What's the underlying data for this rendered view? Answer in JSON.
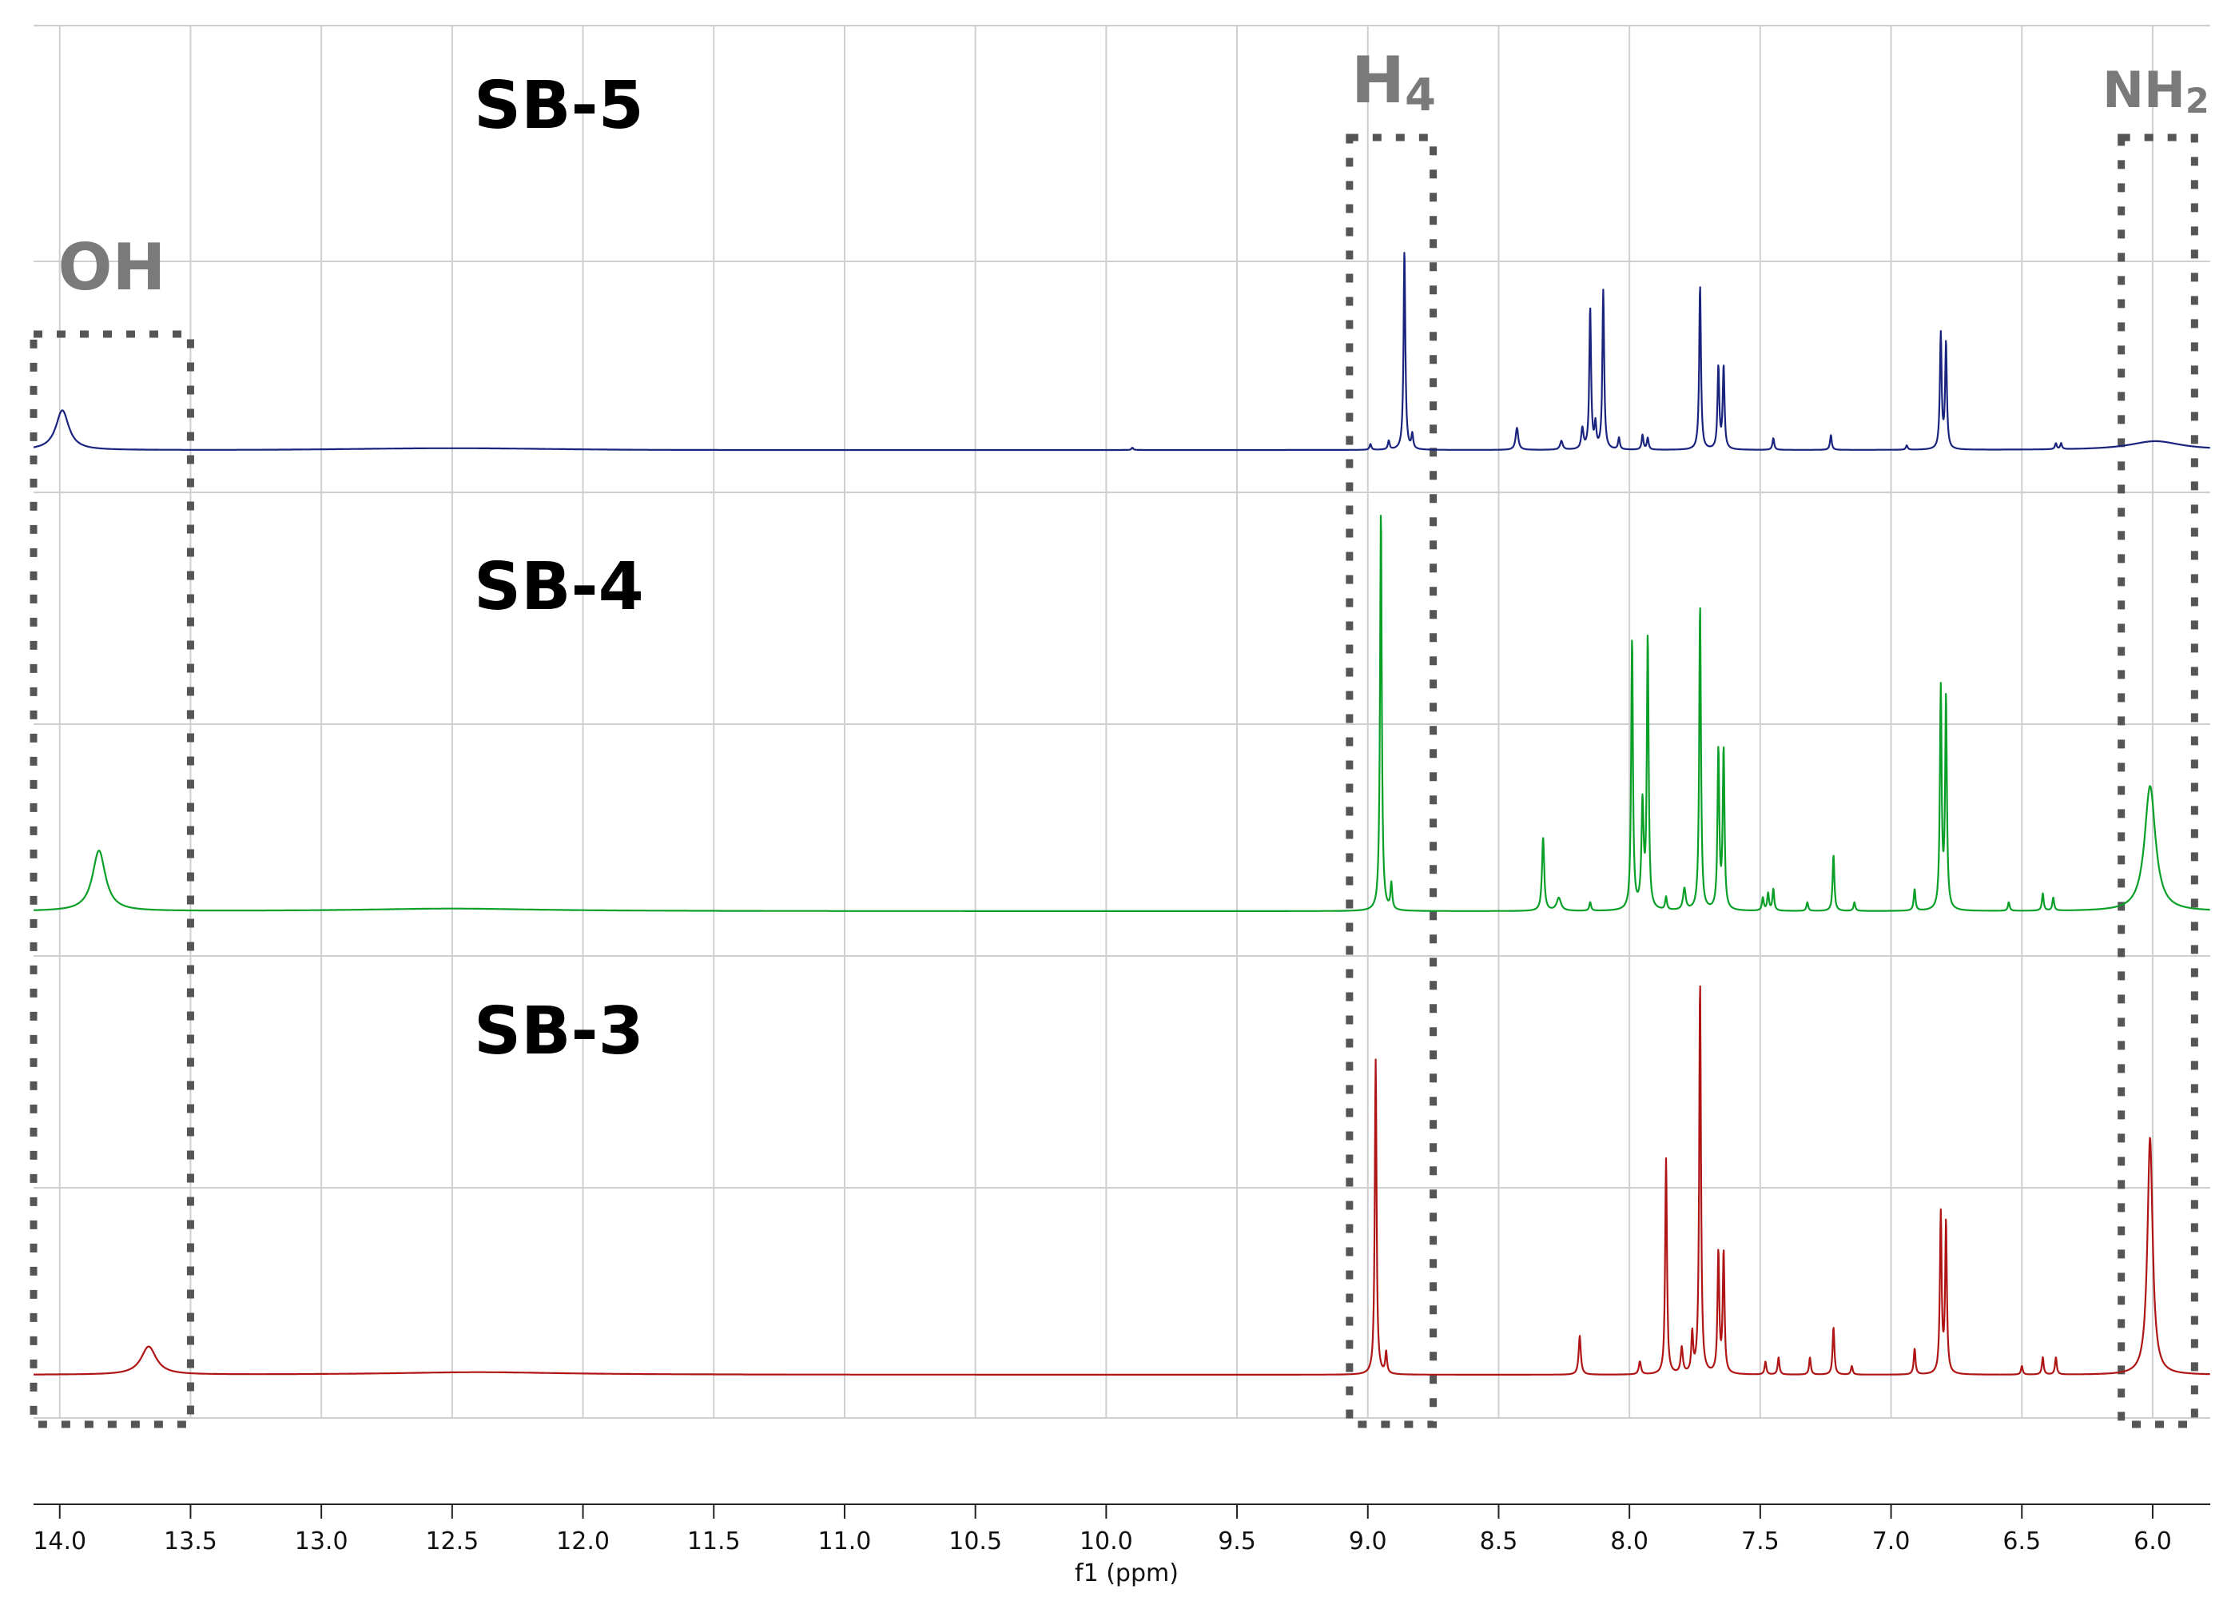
{
  "chart_data": {
    "type": "line",
    "title": "",
    "xlabel": "f1 (ppm)",
    "ylabel": "",
    "xlim": [
      14.1,
      5.78
    ],
    "x_reversed": true,
    "grid": true,
    "xticks": [
      "14.0",
      "13.5",
      "13.0",
      "12.5",
      "12.0",
      "11.5",
      "11.0",
      "10.5",
      "10.0",
      "9.5",
      "9.0",
      "8.5",
      "8.0",
      "7.5",
      "7.0",
      "6.5",
      "6.0"
    ],
    "tick_values": [
      14.0,
      13.5,
      13.0,
      12.5,
      12.0,
      11.5,
      11.0,
      10.5,
      10.0,
      9.5,
      9.0,
      8.5,
      8.0,
      7.5,
      7.0,
      6.5,
      6.0
    ],
    "series": [
      {
        "name": "SB-5",
        "color": "#1a237e",
        "peaks": [
          {
            "x": 13.99,
            "h": 0.135,
            "w": 0.03
          },
          {
            "x": 9.9,
            "h": 0.008,
            "w": 0.004
          },
          {
            "x": 8.99,
            "h": 0.02,
            "w": 0.004
          },
          {
            "x": 8.92,
            "h": 0.03,
            "w": 0.004
          },
          {
            "x": 8.86,
            "h": 0.68,
            "w": 0.004
          },
          {
            "x": 8.83,
            "h": 0.05,
            "w": 0.004
          },
          {
            "x": 8.43,
            "h": 0.075,
            "w": 0.006
          },
          {
            "x": 8.26,
            "h": 0.03,
            "w": 0.006
          },
          {
            "x": 8.18,
            "h": 0.07,
            "w": 0.005
          },
          {
            "x": 8.15,
            "h": 0.48,
            "w": 0.004
          },
          {
            "x": 8.13,
            "h": 0.08,
            "w": 0.004
          },
          {
            "x": 8.1,
            "h": 0.54,
            "w": 0.004
          },
          {
            "x": 8.04,
            "h": 0.04,
            "w": 0.004
          },
          {
            "x": 7.95,
            "h": 0.05,
            "w": 0.004
          },
          {
            "x": 7.93,
            "h": 0.04,
            "w": 0.004
          },
          {
            "x": 7.73,
            "h": 0.56,
            "w": 0.004
          },
          {
            "x": 7.66,
            "h": 0.28,
            "w": 0.004
          },
          {
            "x": 7.64,
            "h": 0.28,
            "w": 0.004
          },
          {
            "x": 7.45,
            "h": 0.04,
            "w": 0.004
          },
          {
            "x": 7.23,
            "h": 0.05,
            "w": 0.004
          },
          {
            "x": 6.94,
            "h": 0.015,
            "w": 0.004
          },
          {
            "x": 6.81,
            "h": 0.39,
            "w": 0.004
          },
          {
            "x": 6.79,
            "h": 0.36,
            "w": 0.004
          },
          {
            "x": 6.37,
            "h": 0.02,
            "w": 0.004
          },
          {
            "x": 6.35,
            "h": 0.02,
            "w": 0.004
          },
          {
            "x": 5.99,
            "h": 0.03,
            "w": 0.12
          }
        ]
      },
      {
        "name": "SB-4",
        "color": "#0aa028",
        "peaks": [
          {
            "x": 13.85,
            "h": 0.14,
            "w": 0.03
          },
          {
            "x": 12.5,
            "h": 0.006,
            "w": 0.4
          },
          {
            "x": 8.95,
            "h": 0.93,
            "w": 0.004
          },
          {
            "x": 8.91,
            "h": 0.06,
            "w": 0.004
          },
          {
            "x": 8.33,
            "h": 0.17,
            "w": 0.005
          },
          {
            "x": 8.27,
            "h": 0.03,
            "w": 0.01
          },
          {
            "x": 8.15,
            "h": 0.02,
            "w": 0.004
          },
          {
            "x": 7.99,
            "h": 0.63,
            "w": 0.004
          },
          {
            "x": 7.95,
            "h": 0.24,
            "w": 0.005
          },
          {
            "x": 7.93,
            "h": 0.63,
            "w": 0.004
          },
          {
            "x": 7.86,
            "h": 0.03,
            "w": 0.004
          },
          {
            "x": 7.79,
            "h": 0.05,
            "w": 0.006
          },
          {
            "x": 7.73,
            "h": 0.71,
            "w": 0.004
          },
          {
            "x": 7.66,
            "h": 0.37,
            "w": 0.004
          },
          {
            "x": 7.64,
            "h": 0.37,
            "w": 0.004
          },
          {
            "x": 7.49,
            "h": 0.03,
            "w": 0.004
          },
          {
            "x": 7.47,
            "h": 0.04,
            "w": 0.004
          },
          {
            "x": 7.45,
            "h": 0.05,
            "w": 0.004
          },
          {
            "x": 7.32,
            "h": 0.02,
            "w": 0.004
          },
          {
            "x": 7.22,
            "h": 0.13,
            "w": 0.004
          },
          {
            "x": 7.14,
            "h": 0.02,
            "w": 0.004
          },
          {
            "x": 6.91,
            "h": 0.05,
            "w": 0.004
          },
          {
            "x": 6.81,
            "h": 0.51,
            "w": 0.004
          },
          {
            "x": 6.79,
            "h": 0.49,
            "w": 0.004
          },
          {
            "x": 6.55,
            "h": 0.02,
            "w": 0.004
          },
          {
            "x": 6.42,
            "h": 0.04,
            "w": 0.004
          },
          {
            "x": 6.38,
            "h": 0.03,
            "w": 0.004
          },
          {
            "x": 6.01,
            "h": 0.29,
            "w": 0.025
          }
        ]
      },
      {
        "name": "SB-3",
        "color": "#b01515",
        "peaks": [
          {
            "x": 13.66,
            "h": 0.065,
            "w": 0.035
          },
          {
            "x": 12.4,
            "h": 0.006,
            "w": 0.4
          },
          {
            "x": 8.97,
            "h": 0.73,
            "w": 0.004
          },
          {
            "x": 8.93,
            "h": 0.05,
            "w": 0.004
          },
          {
            "x": 8.19,
            "h": 0.09,
            "w": 0.005
          },
          {
            "x": 7.96,
            "h": 0.03,
            "w": 0.005
          },
          {
            "x": 7.86,
            "h": 0.5,
            "w": 0.004
          },
          {
            "x": 7.8,
            "h": 0.06,
            "w": 0.005
          },
          {
            "x": 7.76,
            "h": 0.09,
            "w": 0.004
          },
          {
            "x": 7.73,
            "h": 0.91,
            "w": 0.004
          },
          {
            "x": 7.66,
            "h": 0.28,
            "w": 0.004
          },
          {
            "x": 7.64,
            "h": 0.28,
            "w": 0.004
          },
          {
            "x": 7.48,
            "h": 0.03,
            "w": 0.004
          },
          {
            "x": 7.43,
            "h": 0.04,
            "w": 0.004
          },
          {
            "x": 7.31,
            "h": 0.04,
            "w": 0.004
          },
          {
            "x": 7.22,
            "h": 0.11,
            "w": 0.004
          },
          {
            "x": 7.15,
            "h": 0.02,
            "w": 0.004
          },
          {
            "x": 6.91,
            "h": 0.06,
            "w": 0.004
          },
          {
            "x": 6.81,
            "h": 0.37,
            "w": 0.004
          },
          {
            "x": 6.79,
            "h": 0.35,
            "w": 0.004
          },
          {
            "x": 6.5,
            "h": 0.02,
            "w": 0.004
          },
          {
            "x": 6.42,
            "h": 0.04,
            "w": 0.004
          },
          {
            "x": 6.37,
            "h": 0.04,
            "w": 0.004
          },
          {
            "x": 6.01,
            "h": 0.55,
            "w": 0.012
          }
        ]
      }
    ],
    "annotations": [
      {
        "text": "OH",
        "from": 14.1,
        "to": 13.5,
        "color": "#7a7a7a"
      },
      {
        "text": "H",
        "sub": "4",
        "from": 9.07,
        "to": 8.75,
        "color": "#7a7a7a"
      },
      {
        "text": "NH",
        "sub": "2",
        "from": 6.12,
        "to": 5.84,
        "color": "#7a7a7a"
      }
    ]
  }
}
